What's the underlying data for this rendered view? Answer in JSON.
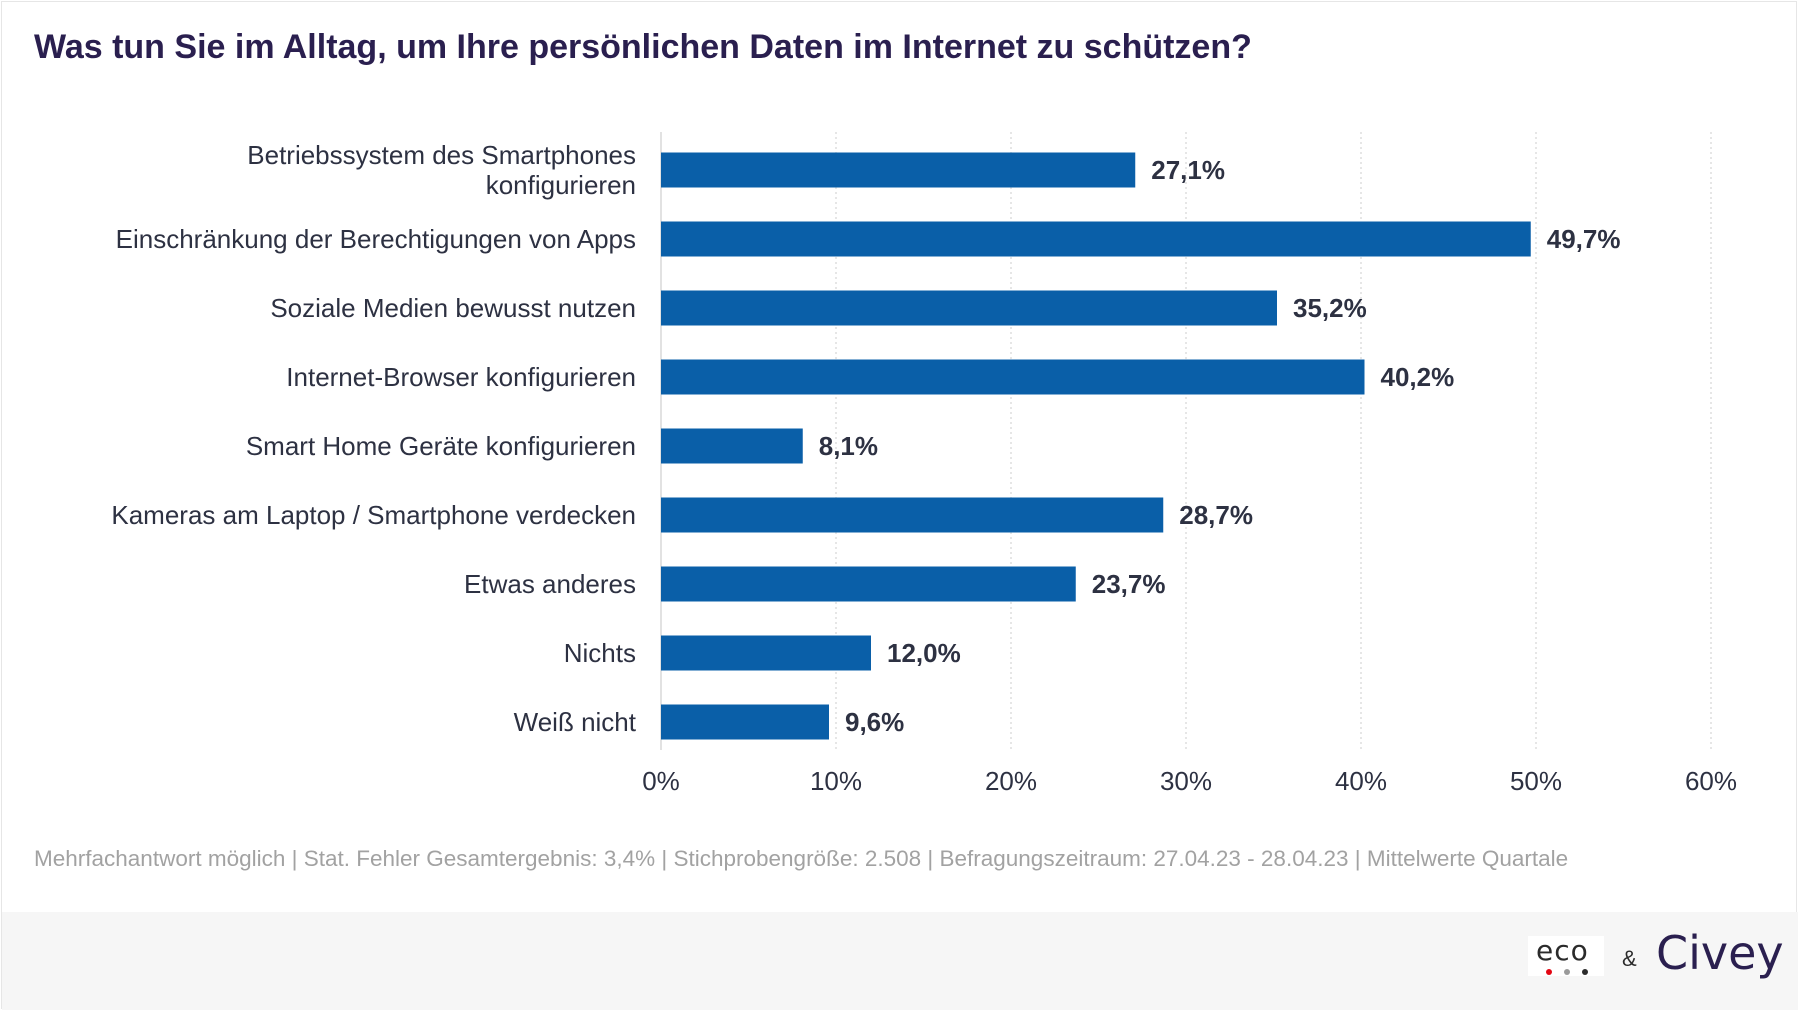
{
  "title": "Was tun Sie im Alltag, um Ihre persönlichen Daten im Internet zu schützen?",
  "footnote": "Mehrfachantwort möglich | Stat. Fehler Gesamtergebnis: 3,4% | Stichprobengröße: 2.508 | Befragungszeitraum: 27.04.23 - 28.04.23 | Mittelwerte Quartale",
  "logos": {
    "eco": "eco",
    "ampersand": "&",
    "civey": "Civey"
  },
  "colors": {
    "bar": "#0a5fa8",
    "title": "#2a1f4f",
    "label": "#2d3142",
    "grid": "#d6d6d6",
    "footnote": "#a2a2a2",
    "eco_dot_red": "#e30613",
    "eco_dot_grey": "#9a9a9a"
  },
  "chart_data": {
    "type": "bar",
    "orientation": "horizontal",
    "categories": [
      [
        "Betriebssystem des Smartphones",
        "konfigurieren"
      ],
      [
        "Einschränkung der Berechtigungen von Apps"
      ],
      [
        "Soziale Medien bewusst nutzen"
      ],
      [
        "Internet-Browser konfigurieren"
      ],
      [
        "Smart Home Geräte konfigurieren"
      ],
      [
        "Kameras am Laptop / Smartphone verdecken"
      ],
      [
        "Etwas anderes"
      ],
      [
        "Nichts"
      ],
      [
        "Weiß nicht"
      ]
    ],
    "values": [
      27.1,
      49.7,
      35.2,
      40.2,
      8.1,
      28.7,
      23.7,
      12.0,
      9.6
    ],
    "value_labels": [
      "27,1%",
      "49,7%",
      "35,2%",
      "40,2%",
      "8,1%",
      "28,7%",
      "23,7%",
      "12,0%",
      "9,6%"
    ],
    "xlim": [
      0,
      60
    ],
    "xticks": [
      0,
      10,
      20,
      30,
      40,
      50,
      60
    ],
    "xtick_labels": [
      "0%",
      "10%",
      "20%",
      "30%",
      "40%",
      "50%",
      "60%"
    ],
    "grid": "vertical dotted",
    "legend": "none"
  }
}
